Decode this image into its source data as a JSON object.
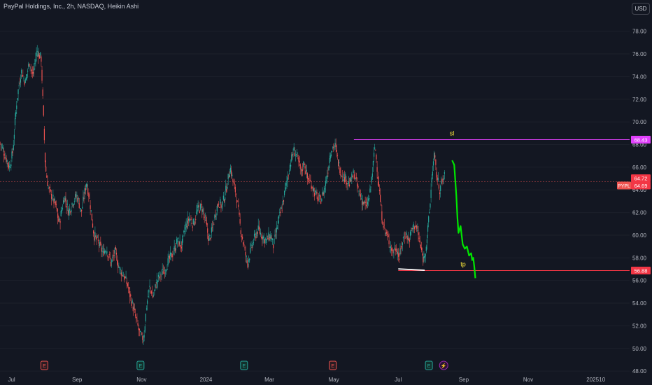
{
  "header": {
    "title": "PayPal Holdings, Inc., 2h, NASDAQ, Heikin Ashi",
    "currency": "USD"
  },
  "colors": {
    "background": "#131722",
    "up_candle": "#26a69a",
    "down_candle": "#ef5350",
    "forecast_path": "#00e600",
    "stop_loss_line": "#e040fb",
    "take_profit_line": "#f23645",
    "level_text": "#ffeb3b",
    "last_price_line": "#ef5350",
    "support_marker": "#ffffff"
  },
  "chart_data": {
    "type": "candlestick",
    "symbol": "PYPL",
    "interval": "2h",
    "style": "Heikin Ashi",
    "x_axis": {
      "range": [
        "2023-06-20",
        "2025-02-05"
      ],
      "tick_labels": [
        {
          "label": "Jul",
          "date": "2023-07-01"
        },
        {
          "label": "Sep",
          "date": "2023-09-01"
        },
        {
          "label": "Nov",
          "date": "2023-11-01"
        },
        {
          "label": "2024",
          "date": "2024-01-01"
        },
        {
          "label": "Mar",
          "date": "2024-03-01"
        },
        {
          "label": "May",
          "date": "2024-05-01"
        },
        {
          "label": "Jul",
          "date": "2024-07-01"
        },
        {
          "label": "Sep",
          "date": "2024-09-01"
        },
        {
          "label": "Nov",
          "date": "2024-11-01"
        },
        {
          "label": "2025",
          "date": "2025-01-01"
        },
        {
          "label": "10",
          "date": "2025-01-10"
        }
      ]
    },
    "y_axis": {
      "range": [
        47.7,
        79.4
      ],
      "ticks": [
        48,
        50,
        52,
        54,
        56,
        58,
        60,
        62,
        64,
        66,
        68,
        70,
        72,
        74,
        76,
        78
      ]
    },
    "price_path": [
      [
        "2023-06-20",
        68.2
      ],
      [
        "2023-06-25",
        67.0
      ],
      [
        "2023-06-29",
        66.0
      ],
      [
        "2023-07-02",
        67.3
      ],
      [
        "2023-07-06",
        72.0
      ],
      [
        "2023-07-10",
        74.5
      ],
      [
        "2023-07-14",
        73.5
      ],
      [
        "2023-07-18",
        75.4
      ],
      [
        "2023-07-21",
        74.0
      ],
      [
        "2023-07-25",
        76.3
      ],
      [
        "2023-07-29",
        75.6
      ],
      [
        "2023-08-02",
        66.0
      ],
      [
        "2023-08-05",
        64.0
      ],
      [
        "2023-08-08",
        63.5
      ],
      [
        "2023-08-12",
        62.5
      ],
      [
        "2023-08-15",
        61.0
      ],
      [
        "2023-08-20",
        63.5
      ],
      [
        "2023-08-24",
        62.0
      ],
      [
        "2023-08-28",
        63.0
      ],
      [
        "2023-09-01",
        63.5
      ],
      [
        "2023-09-05",
        62.0
      ],
      [
        "2023-09-10",
        64.8
      ],
      [
        "2023-09-13",
        63.0
      ],
      [
        "2023-09-17",
        60.0
      ],
      [
        "2023-09-20",
        59.5
      ],
      [
        "2023-09-25",
        58.5
      ],
      [
        "2023-09-29",
        58.8
      ],
      [
        "2023-10-03",
        57.5
      ],
      [
        "2023-10-07",
        58.5
      ],
      [
        "2023-10-11",
        57.0
      ],
      [
        "2023-10-15",
        56.5
      ],
      [
        "2023-10-19",
        55.5
      ],
      [
        "2023-10-23",
        54.0
      ],
      [
        "2023-10-27",
        52.5
      ],
      [
        "2023-10-31",
        51.0
      ],
      [
        "2023-11-03",
        50.9
      ],
      [
        "2023-11-06",
        54.0
      ],
      [
        "2023-11-09",
        55.5
      ],
      [
        "2023-11-12",
        54.5
      ],
      [
        "2023-11-15",
        55.8
      ],
      [
        "2023-11-19",
        56.5
      ],
      [
        "2023-11-23",
        57.0
      ],
      [
        "2023-11-27",
        57.8
      ],
      [
        "2023-12-01",
        58.5
      ],
      [
        "2023-12-05",
        59.5
      ],
      [
        "2023-12-09",
        59.0
      ],
      [
        "2023-12-12",
        60.5
      ],
      [
        "2023-12-16",
        61.5
      ],
      [
        "2023-12-20",
        61.0
      ],
      [
        "2023-12-24",
        62.2
      ],
      [
        "2023-12-28",
        62.5
      ],
      [
        "2024-01-01",
        61.0
      ],
      [
        "2024-01-04",
        59.5
      ],
      [
        "2024-01-07",
        60.5
      ],
      [
        "2024-01-10",
        62.0
      ],
      [
        "2024-01-13",
        63.0
      ],
      [
        "2024-01-16",
        62.5
      ],
      [
        "2024-01-20",
        64.0
      ],
      [
        "2024-01-24",
        66.0
      ],
      [
        "2024-01-27",
        64.5
      ],
      [
        "2024-01-30",
        63.5
      ],
      [
        "2024-02-02",
        61.0
      ],
      [
        "2024-02-06",
        59.0
      ],
      [
        "2024-02-09",
        57.5
      ],
      [
        "2024-02-12",
        58.5
      ],
      [
        "2024-02-15",
        59.5
      ],
      [
        "2024-02-19",
        60.5
      ],
      [
        "2024-02-23",
        60.0
      ],
      [
        "2024-02-27",
        59.5
      ],
      [
        "2024-03-02",
        60.0
      ],
      [
        "2024-03-05",
        59.0
      ],
      [
        "2024-03-09",
        61.0
      ],
      [
        "2024-03-13",
        62.5
      ],
      [
        "2024-03-17",
        64.5
      ],
      [
        "2024-03-20",
        66.0
      ],
      [
        "2024-03-24",
        67.5
      ],
      [
        "2024-03-27",
        67.0
      ],
      [
        "2024-03-31",
        65.5
      ],
      [
        "2024-04-03",
        66.5
      ],
      [
        "2024-04-06",
        65.0
      ],
      [
        "2024-04-10",
        64.5
      ],
      [
        "2024-04-14",
        63.5
      ],
      [
        "2024-04-18",
        63.0
      ],
      [
        "2024-04-22",
        64.0
      ],
      [
        "2024-04-25",
        65.5
      ],
      [
        "2024-04-28",
        67.5
      ],
      [
        "2024-05-02",
        68.0
      ],
      [
        "2024-05-05",
        66.5
      ],
      [
        "2024-05-08",
        65.5
      ],
      [
        "2024-05-12",
        65.0
      ],
      [
        "2024-05-16",
        64.5
      ],
      [
        "2024-05-20",
        65.5
      ],
      [
        "2024-05-24",
        64.0
      ],
      [
        "2024-05-28",
        63.0
      ],
      [
        "2024-06-01",
        62.5
      ],
      [
        "2024-06-04",
        63.5
      ],
      [
        "2024-06-07",
        66.0
      ],
      [
        "2024-06-09",
        68.0
      ],
      [
        "2024-06-12",
        65.0
      ],
      [
        "2024-06-15",
        62.0
      ],
      [
        "2024-06-18",
        60.5
      ],
      [
        "2024-06-22",
        59.5
      ],
      [
        "2024-06-26",
        58.5
      ],
      [
        "2024-06-29",
        59.0
      ],
      [
        "2024-07-02",
        58.0
      ],
      [
        "2024-07-05",
        59.5
      ],
      [
        "2024-07-08",
        60.2
      ],
      [
        "2024-07-11",
        59.5
      ],
      [
        "2024-07-14",
        60.5
      ],
      [
        "2024-07-17",
        61.0
      ],
      [
        "2024-07-20",
        60.0
      ],
      [
        "2024-07-23",
        58.5
      ],
      [
        "2024-07-25",
        57.8
      ],
      [
        "2024-07-28",
        59.5
      ],
      [
        "2024-07-31",
        62.5
      ],
      [
        "2024-08-02",
        65.5
      ],
      [
        "2024-08-04",
        67.0
      ],
      [
        "2024-08-06",
        65.5
      ],
      [
        "2024-08-09",
        64.0
      ],
      [
        "2024-08-12",
        64.8
      ],
      [
        "2024-08-14",
        65.2
      ]
    ],
    "forecast_path": [
      [
        "2024-08-21",
        66.6
      ],
      [
        "2024-08-23",
        66.2
      ],
      [
        "2024-08-25",
        63.5
      ],
      [
        "2024-08-26",
        61.5
      ],
      [
        "2024-08-27",
        60.2
      ],
      [
        "2024-08-29",
        60.8
      ],
      [
        "2024-08-31",
        59.2
      ],
      [
        "2024-09-02",
        58.8
      ],
      [
        "2024-09-04",
        59.0
      ],
      [
        "2024-09-06",
        58.2
      ],
      [
        "2024-09-08",
        58.4
      ],
      [
        "2024-09-09",
        57.8
      ],
      [
        "2024-09-10",
        58.0
      ],
      [
        "2024-09-11",
        57.2
      ],
      [
        "2024-09-12",
        56.2
      ]
    ],
    "levels": [
      {
        "name": "sl",
        "price": 68.43,
        "from": "2024-05-20"
      },
      {
        "name": "tp",
        "price": 56.88,
        "from": "2024-07-01"
      }
    ],
    "support_marker": {
      "from": "2024-07-01",
      "to": "2024-07-26",
      "price": 56.9
    },
    "last_price": {
      "symbol": "PYPL",
      "price": 64.69,
      "line_price": 64.72
    },
    "price_labels": [
      {
        "text": "68.43",
        "price": 68.43,
        "kind": "sl"
      },
      {
        "text": "64.72",
        "price": 64.72,
        "kind": "last"
      },
      {
        "text": "64.69",
        "price": 64.69,
        "kind": "last"
      },
      {
        "text": "56.88",
        "price": 56.88,
        "kind": "tp"
      }
    ],
    "events": [
      {
        "symbol": "E",
        "date": "2023-08-01",
        "kind": "earnings-red"
      },
      {
        "symbol": "E",
        "date": "2023-10-31",
        "kind": "earnings-green"
      },
      {
        "symbol": "E",
        "date": "2024-02-06",
        "kind": "earnings-green"
      },
      {
        "symbol": "E",
        "date": "2024-04-30",
        "kind": "earnings-red"
      },
      {
        "symbol": "E",
        "date": "2024-07-30",
        "kind": "earnings-green"
      },
      {
        "symbol": "⚡",
        "date": "2024-08-13",
        "kind": "dividend"
      }
    ]
  }
}
